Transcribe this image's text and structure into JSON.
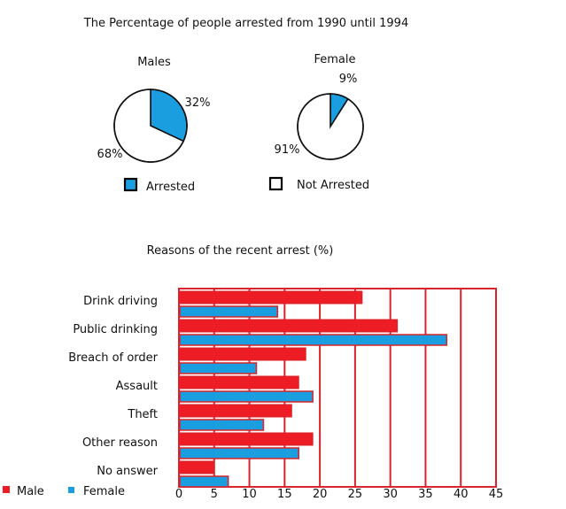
{
  "colors": {
    "male": "#ee1c25",
    "female": "#1a9ee0",
    "arrested": "#1a9ee0",
    "not_arrested": "#ffffff",
    "frame": "#d8242c"
  },
  "chart_data": [
    {
      "type": "pie",
      "title": "The Percentage of people arrested from 1990 until 1994",
      "subtitle": "Males",
      "slices": [
        {
          "name": "Arrested",
          "value": 32,
          "label": "32%"
        },
        {
          "name": "Not Arrested",
          "value": 68,
          "label": "68%"
        }
      ]
    },
    {
      "type": "pie",
      "subtitle": "Female",
      "slices": [
        {
          "name": "Arrested",
          "value": 9,
          "label": "9%"
        },
        {
          "name": "Not Arrested",
          "value": 91,
          "label": "91%"
        }
      ],
      "legend": [
        "Arrested",
        "Not Arrested"
      ],
      "legend_placement": "bottom"
    },
    {
      "type": "bar",
      "orientation": "horizontal",
      "title": "Reasons of the recent arrest (%)",
      "categories": [
        "Drink driving",
        "Public drinking",
        "Breach of order",
        "Assault",
        "Theft",
        "Other reason",
        "No answer"
      ],
      "series": [
        {
          "name": "Male",
          "values": [
            26,
            31,
            18,
            17,
            16,
            19,
            5
          ]
        },
        {
          "name": "Female",
          "values": [
            14,
            38,
            11,
            19,
            12,
            17,
            7
          ]
        }
      ],
      "xlim": [
        0,
        45
      ],
      "xticks": [
        "0",
        "5",
        "10",
        "15",
        "20",
        "25",
        "30",
        "35",
        "40",
        "45"
      ],
      "grid": true,
      "legend_placement": "bottom-left"
    }
  ]
}
